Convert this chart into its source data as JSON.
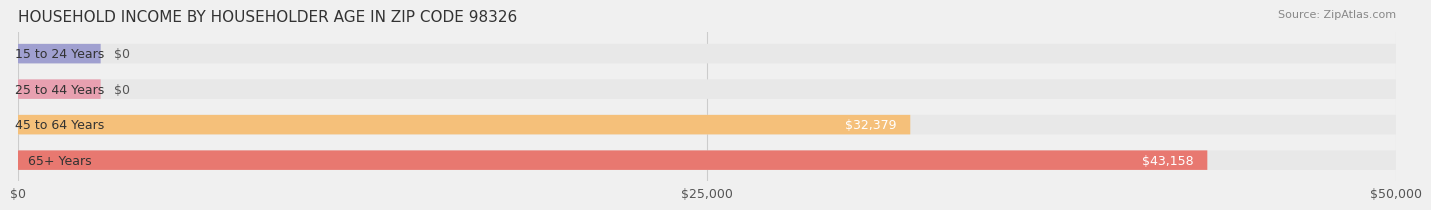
{
  "title": "HOUSEHOLD INCOME BY HOUSEHOLDER AGE IN ZIP CODE 98326",
  "source_text": "Source: ZipAtlas.com",
  "categories": [
    "15 to 24 Years",
    "25 to 44 Years",
    "45 to 64 Years",
    "65+ Years"
  ],
  "values": [
    0,
    0,
    32379,
    43158
  ],
  "bar_colors": [
    "#a0a0d0",
    "#e8a0b0",
    "#f5c07a",
    "#e87870"
  ],
  "label_colors": [
    "#555555",
    "#555555",
    "#ffffff",
    "#ffffff"
  ],
  "bar_labels": [
    "$0",
    "$0",
    "$32,379",
    "$43,158"
  ],
  "xlim": [
    0,
    50000
  ],
  "xticks": [
    0,
    25000,
    50000
  ],
  "xticklabels": [
    "$0",
    "$25,000",
    "$50,000"
  ],
  "background_color": "#f0f0f0",
  "bar_bg_color": "#e8e8e8",
  "title_fontsize": 11,
  "source_fontsize": 8,
  "label_fontsize": 9,
  "tick_fontsize": 9,
  "category_fontsize": 9,
  "bar_height": 0.55,
  "label_color_dark": "#555555",
  "label_color_light": "#ffffff"
}
